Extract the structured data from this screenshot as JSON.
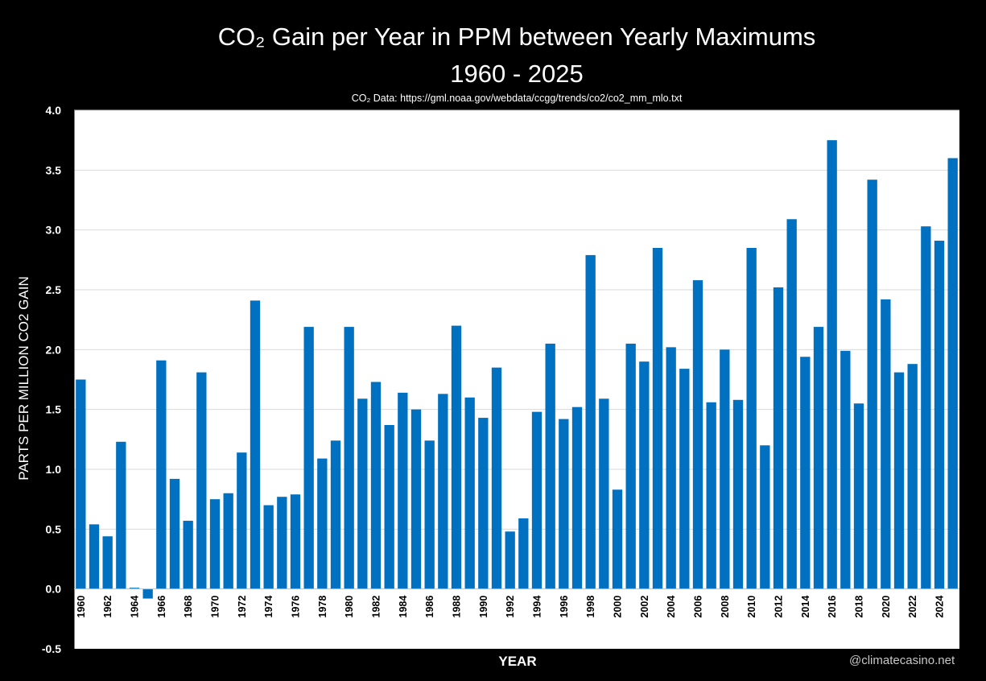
{
  "colors": {
    "bar": "#0070c0",
    "background": "#000000",
    "plot_background": "#ffffff",
    "grid": "#d9d9d9"
  },
  "chart_data": {
    "type": "bar",
    "title": "CO₂ Gain per Year in PPM between Yearly Maximums",
    "subtitle": "1960 - 2025",
    "source": "CO₂ Data: https://gml.noaa.gov/webdata/ccgg/trends/co2/co2_mm_mlo.txt",
    "xlabel": "YEAR",
    "ylabel": "PARTS PER MILLION CO2 GAIN",
    "ylim": [
      -0.5,
      4.0
    ],
    "yticks": [
      "4.0",
      "3.5",
      "3.0",
      "2.5",
      "2.0",
      "1.5",
      "1.0",
      "0.5",
      "0.0",
      "-0.5"
    ],
    "grid": true,
    "legend": "none",
    "categories": [
      "1960",
      "1961",
      "1962",
      "1963",
      "1964",
      "1965",
      "1966",
      "1967",
      "1968",
      "1969",
      "1970",
      "1971",
      "1972",
      "1973",
      "1974",
      "1975",
      "1976",
      "1977",
      "1978",
      "1979",
      "1980",
      "1981",
      "1982",
      "1983",
      "1984",
      "1985",
      "1986",
      "1987",
      "1988",
      "1989",
      "1990",
      "1991",
      "1992",
      "1993",
      "1994",
      "1995",
      "1996",
      "1997",
      "1998",
      "1999",
      "2000",
      "2001",
      "2002",
      "2003",
      "2004",
      "2005",
      "2006",
      "2007",
      "2008",
      "2009",
      "2010",
      "2011",
      "2012",
      "2013",
      "2014",
      "2015",
      "2016",
      "2017",
      "2018",
      "2019",
      "2020",
      "2021",
      "2022",
      "2023",
      "2024",
      "2025"
    ],
    "values": [
      1.75,
      0.54,
      0.44,
      1.23,
      0.01,
      -0.08,
      1.91,
      0.92,
      0.57,
      1.81,
      0.75,
      0.8,
      1.14,
      2.41,
      0.7,
      0.77,
      0.79,
      2.19,
      1.09,
      1.24,
      2.19,
      1.59,
      1.73,
      1.37,
      1.64,
      1.5,
      1.24,
      1.63,
      2.2,
      1.6,
      1.43,
      1.85,
      0.48,
      0.59,
      1.48,
      2.05,
      1.42,
      1.52,
      2.79,
      1.59,
      0.83,
      2.05,
      1.9,
      2.85,
      2.02,
      1.84,
      2.58,
      1.56,
      2.0,
      1.58,
      2.85,
      1.2,
      2.52,
      3.09,
      1.94,
      2.19,
      3.75,
      1.99,
      1.55,
      3.42,
      2.42,
      1.81,
      1.88,
      3.03,
      2.91,
      3.6
    ],
    "xtick_labels": [
      "1960",
      "1962",
      "1964",
      "1966",
      "1968",
      "1970",
      "1972",
      "1974",
      "1976",
      "1978",
      "1980",
      "1982",
      "1984",
      "1986",
      "1988",
      "1990",
      "1992",
      "1994",
      "1996",
      "1998",
      "2000",
      "2002",
      "2004",
      "2006",
      "2008",
      "2010",
      "2012",
      "2014",
      "2016",
      "2018",
      "2020",
      "2022",
      "2024"
    ]
  },
  "watermark": "@climatecasino.net"
}
